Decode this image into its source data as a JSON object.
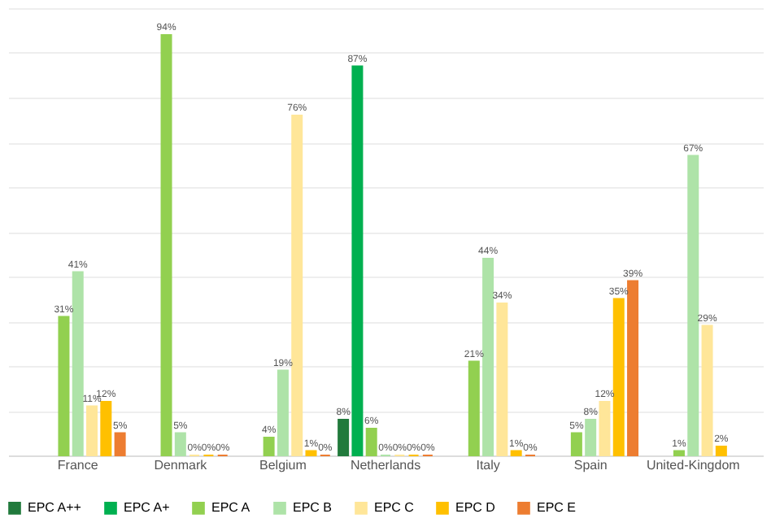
{
  "chart_data": {
    "type": "bar",
    "categories": [
      "France",
      "Denmark",
      "Belgium",
      "Netherlands",
      "Italy",
      "Spain",
      "United-Kingdom"
    ],
    "series": [
      {
        "name": "EPC A++",
        "color": "#217a3c",
        "values": [
          null,
          null,
          null,
          8,
          null,
          null,
          null
        ],
        "value_labels": [
          null,
          null,
          null,
          "8%",
          null,
          null,
          null
        ]
      },
      {
        "name": "EPC A+",
        "color": "#00b050",
        "values": [
          null,
          null,
          null,
          87,
          null,
          null,
          null
        ],
        "value_labels": [
          null,
          null,
          null,
          "87%",
          null,
          null,
          null
        ]
      },
      {
        "name": "EPC A",
        "color": "#92d050",
        "values": [
          31,
          94,
          4,
          6,
          21,
          5,
          1
        ],
        "value_labels": [
          "31%",
          "94%",
          "4%",
          "6%",
          "21%",
          "5%",
          "1%"
        ]
      },
      {
        "name": "EPC B",
        "color": "#aee3a8",
        "values": [
          41,
          5,
          19,
          0,
          44,
          8,
          67
        ],
        "value_labels": [
          "41%",
          "5%",
          "19%",
          "0%",
          "44%",
          "8%",
          "67%"
        ]
      },
      {
        "name": "EPC C",
        "color": "#ffe699",
        "values": [
          11,
          0,
          76,
          0,
          34,
          12,
          29
        ],
        "value_labels": [
          "11%",
          "0%",
          "76%",
          "0%",
          "34%",
          "12%",
          "29%"
        ]
      },
      {
        "name": "EPC D",
        "color": "#ffc000",
        "values": [
          12,
          0,
          1,
          0,
          1,
          35,
          2
        ],
        "value_labels": [
          "12%",
          "0%",
          "1%",
          "0%",
          "1%",
          "35%",
          "2%"
        ]
      },
      {
        "name": "EPC E",
        "color": "#ed7d31",
        "values": [
          5,
          0,
          0,
          0,
          0,
          39,
          null
        ],
        "value_labels": [
          "5%",
          "0%",
          "0%",
          "0%",
          "0%",
          "39%",
          null
        ]
      }
    ],
    "ylim": [
      0,
      100
    ],
    "tick_labels": "x",
    "grid": "y",
    "legend": "bottom"
  }
}
